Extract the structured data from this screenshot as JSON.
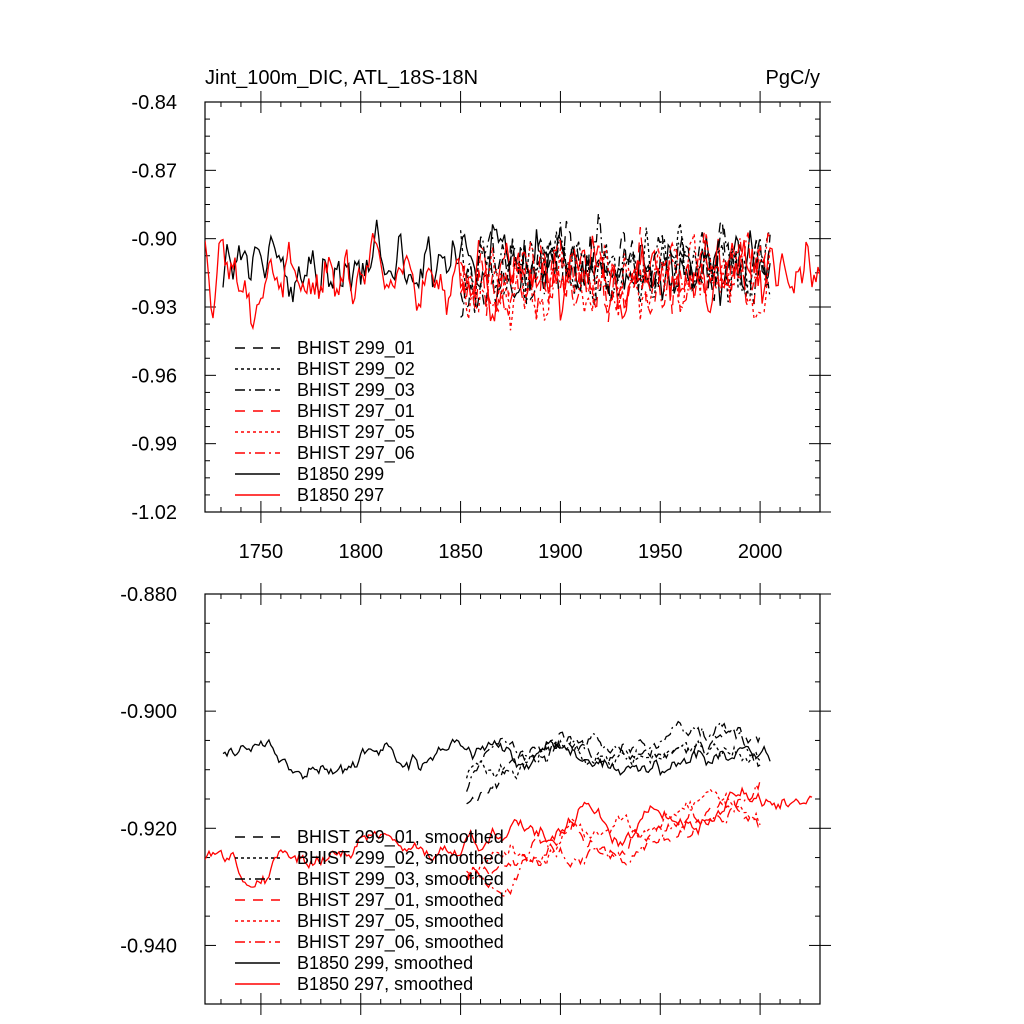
{
  "chart_data": [
    {
      "type": "line",
      "title": "Jint_100m_DIC, ATL_18S-18N",
      "units": "PgC/y",
      "xlim": [
        1722,
        2030
      ],
      "ylim": [
        -1.02,
        -0.84
      ],
      "x_ticks": [
        1750,
        1800,
        1850,
        1900,
        1950,
        2000
      ],
      "x_tick_labels": [
        "1750",
        "1800",
        "1850",
        "1900",
        "1950",
        "2000"
      ],
      "y_ticks": [
        -1.02,
        -0.99,
        -0.96,
        -0.93,
        -0.9,
        -0.87,
        -0.84
      ],
      "y_tick_labels": [
        "-1.02",
        "-0.99",
        "-0.96",
        "-0.93",
        "-0.90",
        "-0.87",
        "-0.84"
      ],
      "legend": [
        {
          "label": "BHIST 299_01",
          "color": "#000000",
          "dash": "10,8"
        },
        {
          "label": "BHIST 299_02",
          "color": "#000000",
          "dash": "3,3"
        },
        {
          "label": "BHIST 299_03",
          "color": "#000000",
          "dash": "10,4,2,4"
        },
        {
          "label": "BHIST 297_01",
          "color": "#ff0000",
          "dash": "10,8"
        },
        {
          "label": "BHIST 297_05",
          "color": "#ff0000",
          "dash": "3,3"
        },
        {
          "label": "BHIST 297_06",
          "color": "#ff0000",
          "dash": "10,4,2,4"
        },
        {
          "label": "B1850 299",
          "color": "#000000",
          "dash": ""
        },
        {
          "label": "B1850 297",
          "color": "#ff0000",
          "dash": ""
        }
      ],
      "series": [
        {
          "name": "B1850 299",
          "x_start": 1731,
          "x_end": 2005,
          "mean": -0.912,
          "amp": 0.022,
          "trend": 0.0,
          "smoothing": 1,
          "seed": 11
        },
        {
          "name": "B1850 297",
          "x_start": 1722,
          "x_end": 2030,
          "mean": -0.918,
          "amp": 0.024,
          "trend": 0.004,
          "smoothing": 1,
          "seed": 23
        },
        {
          "name": "BHIST 299_01",
          "x_start": 1850,
          "x_end": 2005,
          "mean": -0.912,
          "amp": 0.025,
          "trend": 0.004,
          "smoothing": 1,
          "seed": 31
        },
        {
          "name": "BHIST 299_02",
          "x_start": 1850,
          "x_end": 2005,
          "mean": -0.913,
          "amp": 0.025,
          "trend": 0.003,
          "smoothing": 1,
          "seed": 37
        },
        {
          "name": "BHIST 299_03",
          "x_start": 1850,
          "x_end": 2005,
          "mean": -0.911,
          "amp": 0.025,
          "trend": 0.004,
          "smoothing": 1,
          "seed": 41
        },
        {
          "name": "BHIST 297_01",
          "x_start": 1850,
          "x_end": 2005,
          "mean": -0.917,
          "amp": 0.024,
          "trend": 0.006,
          "smoothing": 1,
          "seed": 43
        },
        {
          "name": "BHIST 297_05",
          "x_start": 1850,
          "x_end": 2005,
          "mean": -0.918,
          "amp": 0.024,
          "trend": 0.006,
          "smoothing": 1,
          "seed": 47
        },
        {
          "name": "BHIST 297_06",
          "x_start": 1850,
          "x_end": 2005,
          "mean": -0.916,
          "amp": 0.024,
          "trend": 0.006,
          "smoothing": 1,
          "seed": 53
        }
      ]
    },
    {
      "type": "line",
      "title": "",
      "units": "",
      "xlim": [
        1722,
        2030
      ],
      "ylim": [
        -0.95,
        -0.88
      ],
      "x_ticks": [
        1750,
        1800,
        1850,
        1900,
        1950,
        2000
      ],
      "x_tick_labels": [],
      "y_ticks": [
        -0.94,
        -0.92,
        -0.9,
        -0.88
      ],
      "y_tick_labels": [
        "-0.940",
        "-0.920",
        "-0.900",
        "-0.880"
      ],
      "legend": [
        {
          "label": "BHIST 299_01, smoothed",
          "color": "#000000",
          "dash": "10,8"
        },
        {
          "label": "BHIST 299_02, smoothed",
          "color": "#000000",
          "dash": "3,3"
        },
        {
          "label": "BHIST 299_03, smoothed",
          "color": "#000000",
          "dash": "10,4,2,4"
        },
        {
          "label": "BHIST 297_01, smoothed",
          "color": "#ff0000",
          "dash": "10,8"
        },
        {
          "label": "BHIST 297_05, smoothed",
          "color": "#ff0000",
          "dash": "3,3"
        },
        {
          "label": "BHIST 297_06, smoothed",
          "color": "#ff0000",
          "dash": "10,4,2,4"
        },
        {
          "label": "B1850 299, smoothed",
          "color": "#000000",
          "dash": ""
        },
        {
          "label": "B1850 297, smoothed",
          "color": "#ff0000",
          "dash": ""
        }
      ],
      "series": [
        {
          "name": "B1850 299, smoothed",
          "x_start": 1731,
          "x_end": 2005,
          "mean": -0.908,
          "amp": 0.006,
          "trend": 0.0,
          "smoothing": 8,
          "seed": 11
        },
        {
          "name": "B1850 297, smoothed",
          "x_start": 1722,
          "x_end": 2026,
          "mean": -0.922,
          "amp": 0.006,
          "trend": 0.012,
          "smoothing": 8,
          "seed": 23
        },
        {
          "name": "BHIST 299_01, smoothed",
          "x_start": 1853,
          "x_end": 2000,
          "mean": -0.906,
          "amp": 0.006,
          "trend": 0.006,
          "smoothing": 8,
          "seed": 31
        },
        {
          "name": "BHIST 299_02, smoothed",
          "x_start": 1853,
          "x_end": 2000,
          "mean": -0.908,
          "amp": 0.006,
          "trend": 0.004,
          "smoothing": 8,
          "seed": 37
        },
        {
          "name": "BHIST 299_03, smoothed",
          "x_start": 1853,
          "x_end": 2000,
          "mean": -0.906,
          "amp": 0.006,
          "trend": 0.006,
          "smoothing": 8,
          "seed": 41
        },
        {
          "name": "BHIST 297_01, smoothed",
          "x_start": 1853,
          "x_end": 2000,
          "mean": -0.921,
          "amp": 0.006,
          "trend": 0.012,
          "smoothing": 8,
          "seed": 43
        },
        {
          "name": "BHIST 297_05, smoothed",
          "x_start": 1853,
          "x_end": 2000,
          "mean": -0.92,
          "amp": 0.006,
          "trend": 0.01,
          "smoothing": 8,
          "seed": 47
        },
        {
          "name": "BHIST 297_06, smoothed",
          "x_start": 1853,
          "x_end": 2000,
          "mean": -0.922,
          "amp": 0.006,
          "trend": 0.014,
          "smoothing": 8,
          "seed": 53
        }
      ]
    }
  ]
}
